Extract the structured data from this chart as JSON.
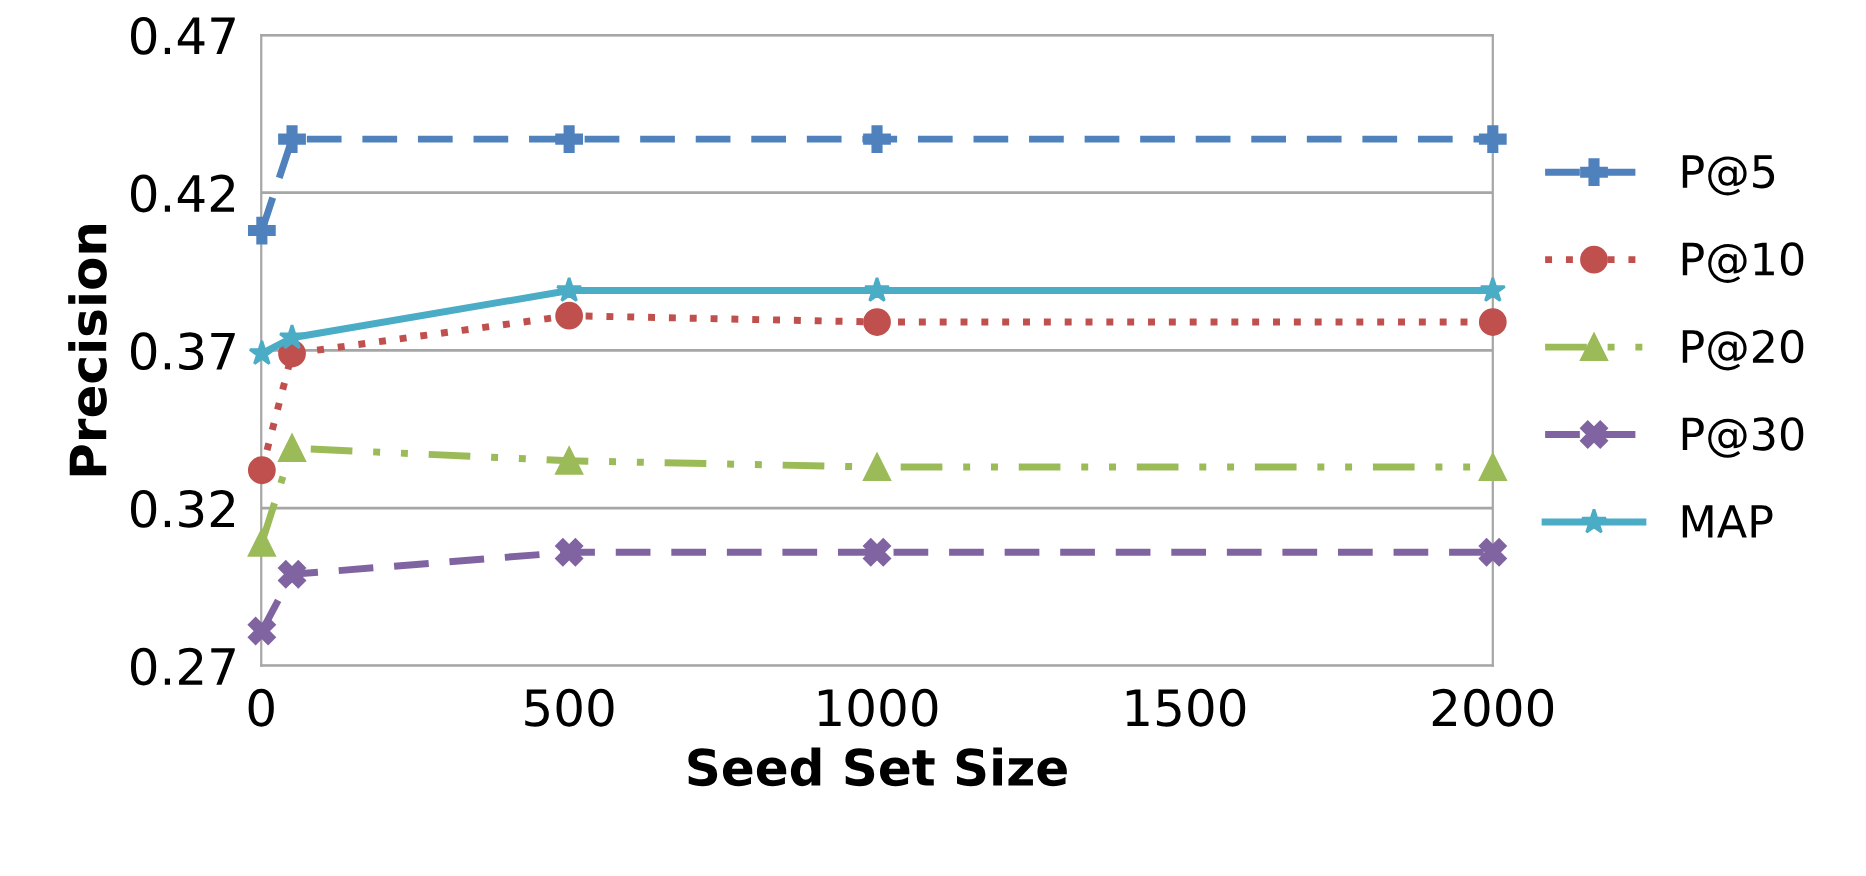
{
  "chart_data": {
    "type": "line",
    "xlabel": "Seed Set Size",
    "ylabel": "Precision",
    "x": [
      1,
      50,
      500,
      1000,
      2000
    ],
    "series": [
      {
        "name": "P@5",
        "color": "#4f81bd",
        "marker": "cross",
        "line_style": "dashed",
        "values": [
          0.408,
          0.437,
          0.437,
          0.437,
          0.437
        ]
      },
      {
        "name": "P@10",
        "color": "#c0504d",
        "marker": "circle",
        "line_style": "dotted",
        "values": [
          0.332,
          0.369,
          0.381,
          0.379,
          0.379
        ]
      },
      {
        "name": "P@20",
        "color": "#9bbb59",
        "marker": "triangle",
        "line_style": "dashdot",
        "values": [
          0.309,
          0.339,
          0.335,
          0.333,
          0.333
        ]
      },
      {
        "name": "P@30",
        "color": "#8064a2",
        "marker": "x",
        "line_style": "dashed",
        "values": [
          0.281,
          0.299,
          0.306,
          0.306,
          0.306
        ]
      },
      {
        "name": "MAP",
        "color": "#4bacc6",
        "marker": "star",
        "line_style": "solid",
        "values": [
          0.369,
          0.374,
          0.389,
          0.389,
          0.389
        ]
      }
    ],
    "xlim": [
      0,
      2000
    ],
    "xticks": [
      0,
      500,
      1000,
      1500,
      2000
    ],
    "ylim": [
      0.27,
      0.47
    ],
    "yticks": [
      0.27,
      0.32,
      0.37,
      0.42,
      0.47
    ],
    "grid": "y",
    "legend": "right"
  }
}
